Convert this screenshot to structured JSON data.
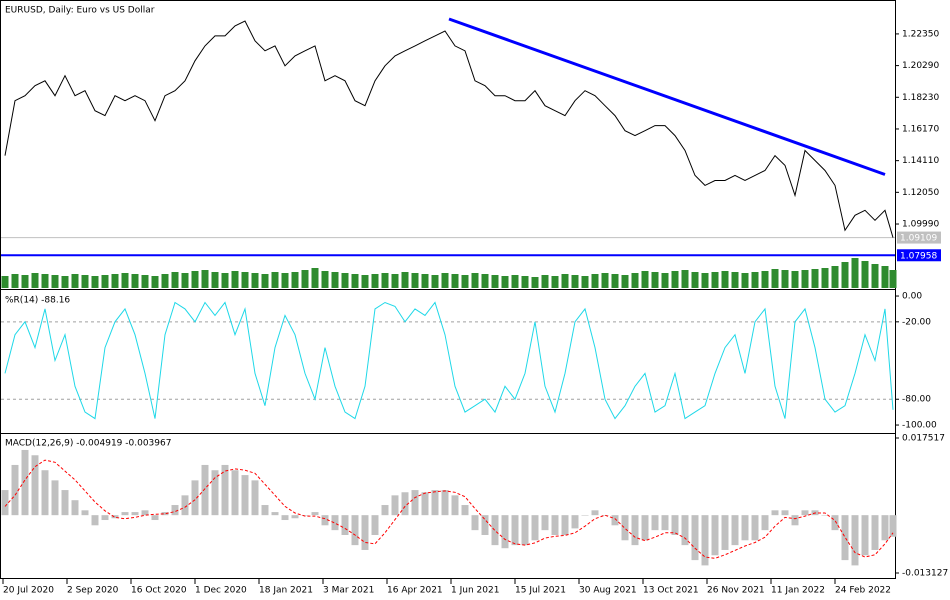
{
  "chart_data": [
    {
      "type": "line",
      "title": "EURUSD, Daily:  Euro vs US Dollar",
      "x": [
        0,
        5,
        10,
        15,
        20,
        25,
        30,
        35,
        40,
        45,
        50,
        55,
        60,
        65,
        70,
        75,
        80,
        85,
        90,
        95,
        100,
        105,
        110,
        115,
        120,
        125,
        130,
        135,
        140,
        145,
        150,
        155,
        160,
        165,
        170,
        175,
        180,
        185,
        190,
        195,
        200,
        205,
        210,
        215,
        220,
        225,
        230,
        235,
        240,
        245,
        250,
        255,
        260,
        265,
        270,
        275,
        280,
        285,
        290,
        295,
        300,
        305,
        310,
        315,
        320,
        325,
        330,
        335,
        340,
        345,
        350,
        355,
        360,
        365,
        370,
        375,
        380,
        385,
        390,
        395,
        400,
        405,
        410,
        415,
        420,
        425,
        430,
        435,
        440,
        444
      ],
      "xlim": [
        -2,
        445
      ],
      "series": [
        {
          "color": "#000000",
          "values": [
            1.1444,
            1.1801,
            1.1833,
            1.1898,
            1.193,
            1.1833,
            1.1963,
            1.1833,
            1.1866,
            1.1736,
            1.1704,
            1.1833,
            1.1801,
            1.1833,
            1.1801,
            1.1671,
            1.1833,
            1.1866,
            1.193,
            1.206,
            1.2157,
            1.2222,
            1.2222,
            1.2287,
            1.2319,
            1.219,
            1.2125,
            1.2157,
            1.2028,
            1.2092,
            1.2125,
            1.2157,
            1.193,
            1.1963,
            1.193,
            1.1801,
            1.1768,
            1.193,
            1.2028,
            1.2092,
            1.2125,
            1.2157,
            1.219,
            1.2222,
            1.2254,
            1.2157,
            1.2125,
            1.193,
            1.1898,
            1.1833,
            1.1833,
            1.1801,
            1.1801,
            1.1866,
            1.1768,
            1.1736,
            1.1704,
            1.1801,
            1.1866,
            1.1833,
            1.1768,
            1.1704,
            1.1606,
            1.1574,
            1.1606,
            1.1639,
            1.1639,
            1.1574,
            1.1477,
            1.1315,
            1.125,
            1.1282,
            1.1282,
            1.1315,
            1.1282,
            1.1315,
            1.1347,
            1.1444,
            1.138,
            1.1185,
            1.1477,
            1.1412,
            1.1347,
            1.125,
            1.0958,
            1.1056,
            1.1088,
            1.1023,
            1.1088,
            1.09109
          ]
        }
      ],
      "ylim": [
        1.0583,
        1.2449
      ],
      "yticks": [
        {
          "value": 1.2235,
          "label": "1.22350"
        },
        {
          "value": 1.2029,
          "label": "1.20290"
        },
        {
          "value": 1.1823,
          "label": "1.18230"
        },
        {
          "value": 1.1617,
          "label": "1.16170"
        },
        {
          "value": 1.1411,
          "label": "1.14110"
        },
        {
          "value": 1.1205,
          "label": "1.12050"
        },
        {
          "value": 1.0999,
          "label": "1.09990"
        }
      ],
      "hlines": [
        {
          "value": 1.09109,
          "color": "#c0c0c0"
        },
        {
          "value": 1.07958,
          "color": "#0000ff"
        }
      ],
      "trendline": {
        "x": [
          222,
          440
        ],
        "y": [
          1.2332,
          1.1321
        ],
        "color": "#0000ff"
      }
    },
    {
      "type": "bar",
      "color": "#2e8b2e",
      "x": [
        0,
        5,
        10,
        15,
        20,
        25,
        30,
        35,
        40,
        45,
        50,
        55,
        60,
        65,
        70,
        75,
        80,
        85,
        90,
        95,
        100,
        105,
        110,
        115,
        120,
        125,
        130,
        135,
        140,
        145,
        150,
        155,
        160,
        165,
        170,
        175,
        180,
        185,
        190,
        195,
        200,
        205,
        210,
        215,
        220,
        225,
        230,
        235,
        240,
        245,
        250,
        255,
        260,
        265,
        270,
        275,
        280,
        285,
        290,
        295,
        300,
        305,
        310,
        315,
        320,
        325,
        330,
        335,
        340,
        345,
        350,
        355,
        360,
        365,
        370,
        375,
        380,
        385,
        390,
        395,
        400,
        405,
        410,
        415,
        420,
        425,
        430,
        435,
        440,
        444
      ],
      "xlim": [
        -2,
        445
      ],
      "series": [
        {
          "color": "#2e8b2e",
          "values": [
            12,
            14,
            13,
            15,
            14,
            13,
            12,
            14,
            13,
            12,
            13,
            14,
            15,
            14,
            13,
            12,
            14,
            16,
            15,
            17,
            18,
            16,
            15,
            17,
            16,
            15,
            14,
            16,
            15,
            16,
            18,
            20,
            17,
            16,
            15,
            14,
            13,
            14,
            15,
            14,
            16,
            15,
            14,
            13,
            15,
            14,
            13,
            15,
            14,
            13,
            12,
            13,
            12,
            11,
            13,
            12,
            14,
            13,
            12,
            14,
            15,
            14,
            13,
            15,
            17,
            16,
            15,
            17,
            18,
            16,
            15,
            16,
            17,
            16,
            15,
            16,
            17,
            19,
            18,
            17,
            18,
            19,
            20,
            22,
            26,
            30,
            27,
            24,
            22,
            18
          ]
        }
      ],
      "ylim": [
        0,
        100
      ]
    },
    {
      "type": "line",
      "title": "%R(14) -88.16",
      "x": [
        0,
        5,
        10,
        15,
        20,
        25,
        30,
        35,
        40,
        45,
        50,
        55,
        60,
        65,
        70,
        75,
        80,
        85,
        90,
        95,
        100,
        105,
        110,
        115,
        120,
        125,
        130,
        135,
        140,
        145,
        150,
        155,
        160,
        165,
        170,
        175,
        180,
        185,
        190,
        195,
        200,
        205,
        210,
        215,
        220,
        225,
        230,
        235,
        240,
        245,
        250,
        255,
        260,
        265,
        270,
        275,
        280,
        285,
        290,
        295,
        300,
        305,
        310,
        315,
        320,
        325,
        330,
        335,
        340,
        345,
        350,
        355,
        360,
        365,
        370,
        375,
        380,
        385,
        390,
        395,
        400,
        405,
        410,
        415,
        420,
        425,
        430,
        435,
        440,
        444
      ],
      "xlim": [
        -2,
        445
      ],
      "series": [
        {
          "color": "#1fd8e8",
          "values": [
            -60,
            -30,
            -20,
            -40,
            -10,
            -50,
            -30,
            -70,
            -90,
            -95,
            -40,
            -20,
            -10,
            -30,
            -60,
            -95,
            -30,
            -5,
            -10,
            -20,
            -5,
            -15,
            -5,
            -30,
            -10,
            -60,
            -85,
            -40,
            -15,
            -30,
            -60,
            -80,
            -40,
            -70,
            -90,
            -95,
            -70,
            -10,
            -5,
            -8,
            -20,
            -10,
            -15,
            -5,
            -30,
            -70,
            -90,
            -85,
            -80,
            -90,
            -70,
            -80,
            -60,
            -20,
            -70,
            -90,
            -60,
            -20,
            -10,
            -40,
            -80,
            -95,
            -85,
            -70,
            -60,
            -90,
            -85,
            -60,
            -95,
            -90,
            -85,
            -60,
            -40,
            -30,
            -60,
            -20,
            -10,
            -70,
            -95,
            -20,
            -10,
            -40,
            -80,
            -90,
            -85,
            -60,
            -30,
            -50,
            -10,
            -88.16
          ]
        }
      ],
      "ylim": [
        -105.4,
        3.9
      ],
      "yticks": [
        {
          "value": 0,
          "label": "0.00"
        },
        {
          "value": -20,
          "label": "-20.00"
        },
        {
          "value": -80,
          "label": "-80.00"
        },
        {
          "value": -100,
          "label": "-100.00"
        }
      ],
      "levels": [
        -20,
        -80
      ]
    },
    {
      "type": "bar",
      "title": "MACD(12,26,9) -0.004919 -0.003967",
      "x": [
        0,
        5,
        10,
        15,
        20,
        25,
        30,
        35,
        40,
        45,
        50,
        55,
        60,
        65,
        70,
        75,
        80,
        85,
        90,
        95,
        100,
        105,
        110,
        115,
        120,
        125,
        130,
        135,
        140,
        145,
        150,
        155,
        160,
        165,
        170,
        175,
        180,
        185,
        190,
        195,
        200,
        205,
        210,
        215,
        220,
        225,
        230,
        235,
        240,
        245,
        250,
        255,
        260,
        265,
        270,
        275,
        280,
        285,
        290,
        295,
        300,
        305,
        310,
        315,
        320,
        325,
        330,
        335,
        340,
        345,
        350,
        355,
        360,
        365,
        370,
        375,
        380,
        385,
        390,
        395,
        400,
        405,
        410,
        415,
        420,
        425,
        430,
        435,
        440,
        444
      ],
      "xlim": [
        -2,
        445
      ],
      "xticks": [
        {
          "value": -1,
          "label": "20 Jul 2020"
        },
        {
          "value": 31,
          "label": "2 Sep 2020"
        },
        {
          "value": 63,
          "label": "16 Oct 2020"
        },
        {
          "value": 95,
          "label": "1 Dec 2020"
        },
        {
          "value": 127,
          "label": "18 Jan 2021"
        },
        {
          "value": 159,
          "label": "3 Mar 2021"
        },
        {
          "value": 191,
          "label": "16 Apr 2021"
        },
        {
          "value": 223,
          "label": "1 Jun 2021"
        },
        {
          "value": 255,
          "label": "15 Jul 2021"
        },
        {
          "value": 287,
          "label": "30 Aug 2021"
        },
        {
          "value": 319,
          "label": "13 Oct 2021"
        },
        {
          "value": 351,
          "label": "26 Nov 2021"
        },
        {
          "value": 383,
          "label": "11 Jan 2022"
        },
        {
          "value": 415,
          "label": "24 Feb 2022"
        }
      ],
      "series": [
        {
          "type": "bar",
          "color": "#c0c0c0",
          "values": [
            0.0057,
            0.0114,
            0.0148,
            0.0136,
            0.0102,
            0.0079,
            0.0057,
            0.0034,
            0.0011,
            -0.0023,
            -0.0011,
            -0.0007,
            0.0007,
            0.0007,
            0.0011,
            -0.0011,
            0.0007,
            0.0023,
            0.0045,
            0.0079,
            0.0114,
            0.0102,
            0.0114,
            0.0102,
            0.0091,
            0.0079,
            0.0023,
            0.0007,
            -0.0011,
            -0.0007,
            0,
            0.0007,
            -0.0023,
            -0.0034,
            -0.0045,
            -0.0068,
            -0.0079,
            -0.0045,
            0.0023,
            0.0045,
            0.0052,
            0.0057,
            0.0052,
            0.0057,
            0.0057,
            0.0045,
            0.0023,
            -0.0034,
            -0.0045,
            -0.0068,
            -0.0075,
            -0.0068,
            -0.0068,
            -0.0057,
            -0.0034,
            -0.0045,
            -0.0045,
            -0.003,
            0,
            0.0011,
            0,
            -0.0023,
            -0.0057,
            -0.0068,
            -0.0057,
            -0.0034,
            -0.0034,
            -0.0045,
            -0.0068,
            -0.0102,
            -0.0114,
            -0.0091,
            -0.0079,
            -0.0068,
            -0.0057,
            -0.0057,
            -0.0034,
            0.0011,
            0.0011,
            -0.0023,
            0.0011,
            0.0011,
            0,
            -0.0034,
            -0.0102,
            -0.0114,
            -0.0091,
            -0.0079,
            -0.0057,
            -0.0049
          ]
        },
        {
          "type": "line",
          "dashed": true,
          "color": "#ff0000",
          "values": [
            0.002,
            0.0045,
            0.008,
            0.011,
            0.0125,
            0.012,
            0.01,
            0.008,
            0.0055,
            0.003,
            0.001,
            -0.0005,
            -0.0008,
            -0.0005,
            0,
            0.0002,
            0.0003,
            0.0008,
            0.0018,
            0.0035,
            0.006,
            0.0085,
            0.01,
            0.0105,
            0.0102,
            0.0095,
            0.007,
            0.0045,
            0.002,
            0.0005,
            -0.0002,
            -0.0002,
            -0.0008,
            -0.0018,
            -0.003,
            -0.0045,
            -0.0062,
            -0.0065,
            -0.004,
            -0.001,
            0.002,
            0.004,
            0.005,
            0.0053,
            0.0055,
            0.0052,
            0.0042,
            0.0015,
            -0.001,
            -0.0035,
            -0.0055,
            -0.0065,
            -0.0068,
            -0.0063,
            -0.0052,
            -0.0048,
            -0.0046,
            -0.004,
            -0.0025,
            -0.0008,
            0,
            -0.0008,
            -0.003,
            -0.005,
            -0.0058,
            -0.005,
            -0.004,
            -0.004,
            -0.0052,
            -0.0075,
            -0.0095,
            -0.0098,
            -0.009,
            -0.008,
            -0.007,
            -0.0062,
            -0.005,
            -0.0025,
            -0.0005,
            -0.0008,
            -0.0002,
            0.0005,
            0.0005,
            -0.0012,
            -0.005,
            -0.0085,
            -0.0095,
            -0.009,
            -0.0065,
            -0.004
          ]
        }
      ],
      "ylim": [
        -0.014262,
        0.018425
      ],
      "yticks": [
        0.017517,
        -0.013127
      ]
    }
  ]
}
